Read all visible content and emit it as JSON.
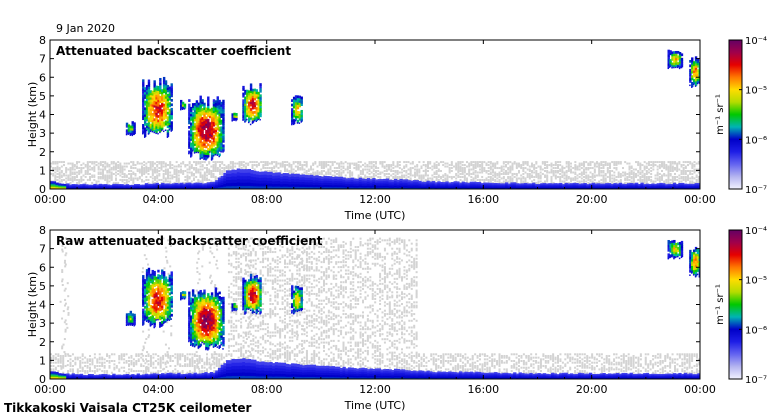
{
  "header": {
    "date": "9 Jan 2020"
  },
  "footer": {
    "station": "Tikkakoski Vaisala CT25K ceilometer"
  },
  "colors": {
    "colormap": [
      "#f2f2ff",
      "#b4b4f0",
      "#6464f0",
      "#1e1ee6",
      "#0000c8",
      "#00b4b4",
      "#00c800",
      "#b4dc00",
      "#ffdc00",
      "#ff7800",
      "#e60000",
      "#a0004b",
      "#640064"
    ],
    "noise": "#d3d3d3",
    "background": "#ffffff"
  },
  "chart_data": [
    {
      "type": "heatmap",
      "title": "Attenuated backscatter coefficient",
      "xlabel": "Time (UTC)",
      "ylabel": "Height (km)",
      "x_ticks": [
        "00:00",
        "04:00",
        "08:00",
        "12:00",
        "16:00",
        "20:00",
        "00:00"
      ],
      "xlim_hours": [
        0,
        24
      ],
      "y_ticks": [
        0,
        1,
        2,
        3,
        4,
        5,
        6,
        7,
        8
      ],
      "ylim": [
        0,
        8
      ],
      "colorbar": {
        "scale": "log",
        "unit": "m⁻¹ sr⁻¹",
        "range": [
          1e-07,
          0.0001
        ],
        "ticks": [
          "10⁻⁴",
          "10⁻⁵",
          "10⁻⁶",
          "10⁻⁷"
        ]
      },
      "boundary_layer": {
        "hours": [
          0,
          0.5,
          1,
          2,
          3,
          4,
          5,
          6,
          6.5,
          7,
          8,
          9,
          10,
          11,
          12,
          13,
          14,
          16,
          18,
          20,
          22,
          24
        ],
        "top_km": [
          0.4,
          0.3,
          0.25,
          0.25,
          0.25,
          0.3,
          0.3,
          0.35,
          1.0,
          1.1,
          0.9,
          0.8,
          0.7,
          0.6,
          0.55,
          0.5,
          0.4,
          0.35,
          0.3,
          0.3,
          0.3,
          0.3
        ]
      },
      "cloud_layers": [
        {
          "start_h": 2.8,
          "end_h": 3.1,
          "base_km": 2.9,
          "top_km": 3.6,
          "peak": 0.4
        },
        {
          "start_h": 3.4,
          "end_h": 4.5,
          "base_km": 2.8,
          "top_km": 5.9,
          "peak": 0.85
        },
        {
          "start_h": 4.8,
          "end_h": 5.0,
          "base_km": 4.3,
          "top_km": 4.7,
          "peak": 0.5
        },
        {
          "start_h": 5.1,
          "end_h": 6.4,
          "base_km": 1.6,
          "top_km": 4.9,
          "peak": 1.0
        },
        {
          "start_h": 6.7,
          "end_h": 6.9,
          "base_km": 3.7,
          "top_km": 4.1,
          "peak": 0.45
        },
        {
          "start_h": 7.1,
          "end_h": 7.8,
          "base_km": 3.5,
          "top_km": 5.6,
          "peak": 0.9
        },
        {
          "start_h": 8.9,
          "end_h": 9.3,
          "base_km": 3.5,
          "top_km": 5.0,
          "peak": 0.6
        },
        {
          "start_h": 22.8,
          "end_h": 23.3,
          "base_km": 6.5,
          "top_km": 7.4,
          "peak": 0.6
        },
        {
          "start_h": 23.6,
          "end_h": 24.0,
          "base_km": 5.5,
          "top_km": 7.1,
          "peak": 0.7
        }
      ],
      "noise_top_km": 1.5
    },
    {
      "type": "heatmap",
      "title": "Raw attenuated backscatter coefficient",
      "xlabel": "Time (UTC)",
      "ylabel": "Height (km)",
      "x_ticks": [
        "00:00",
        "04:00",
        "08:00",
        "12:00",
        "16:00",
        "20:00",
        "00:00"
      ],
      "xlim_hours": [
        0,
        24
      ],
      "y_ticks": [
        0,
        1,
        2,
        3,
        4,
        5,
        6,
        7,
        8
      ],
      "ylim": [
        0,
        8
      ],
      "colorbar": {
        "scale": "log",
        "unit": "m⁻¹ sr⁻¹",
        "range": [
          1e-07,
          0.0001
        ],
        "ticks": [
          "10⁻⁴",
          "10⁻⁵",
          "10⁻⁶",
          "10⁻⁷"
        ]
      },
      "noise_band": {
        "start_h": 6.5,
        "end_h": 13.5,
        "top_km": 7.5
      },
      "noise_streaks_h": [
        0.5,
        3.5,
        4.3,
        5.5,
        6.0,
        7.3,
        9.2
      ]
    }
  ]
}
